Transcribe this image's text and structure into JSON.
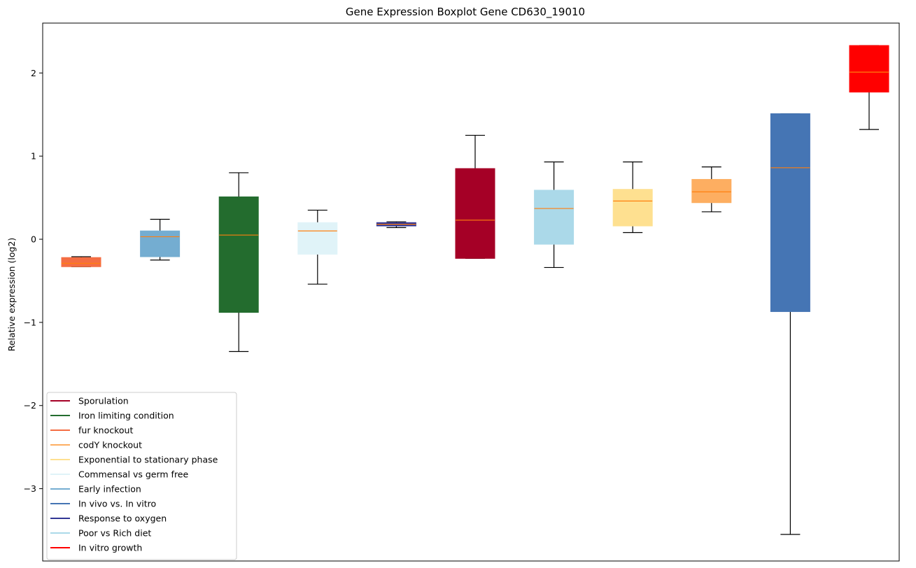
{
  "chart_data": {
    "type": "box",
    "title": "Gene Expression Boxplot Gene CD630_19010",
    "xlabel": "",
    "ylabel": "Relative expression (log2)",
    "ylim": [
      -3.87,
      2.6
    ],
    "yticks": [
      -3,
      -2,
      -1,
      0,
      1,
      2
    ],
    "ytick_labels": [
      "−3",
      "−2",
      "−1",
      "0",
      "1",
      "2"
    ],
    "median_color": "#ff7f0e",
    "legend_position": "lower-left",
    "boxes": [
      {
        "label": "fur knockout",
        "color": "#f46d43",
        "whisker_low": -0.33,
        "q1": -0.33,
        "median": -0.29,
        "q3": -0.22,
        "whisker_high": -0.21
      },
      {
        "label": "Early infection",
        "color": "#74add1",
        "whisker_low": -0.25,
        "q1": -0.21,
        "median": 0.03,
        "q3": 0.1,
        "whisker_high": 0.24
      },
      {
        "label": "Iron limiting condition",
        "color": "#236c2e",
        "whisker_low": -1.35,
        "q1": -0.88,
        "median": 0.05,
        "q3": 0.51,
        "whisker_high": 0.8
      },
      {
        "label": "Commensal vs germ free",
        "color": "#e0f3f8",
        "whisker_low": -0.54,
        "q1": -0.18,
        "median": 0.1,
        "q3": 0.2,
        "whisker_high": 0.35
      },
      {
        "label": "Response to oxygen",
        "color": "#313695",
        "whisker_low": 0.14,
        "q1": 0.16,
        "median": 0.18,
        "q3": 0.2,
        "whisker_high": 0.21
      },
      {
        "label": "Sporulation",
        "color": "#a50026",
        "whisker_low": -0.23,
        "q1": -0.23,
        "median": 0.23,
        "q3": 0.85,
        "whisker_high": 1.25
      },
      {
        "label": "Poor vs Rich diet",
        "color": "#abd9e9",
        "whisker_low": -0.34,
        "q1": -0.06,
        "median": 0.37,
        "q3": 0.59,
        "whisker_high": 0.93
      },
      {
        "label": "Exponential to stationary phase",
        "color": "#fee090",
        "whisker_low": 0.08,
        "q1": 0.16,
        "median": 0.46,
        "q3": 0.6,
        "whisker_high": 0.93
      },
      {
        "label": "codY knockout",
        "color": "#fdae61",
        "whisker_low": 0.33,
        "q1": 0.44,
        "median": 0.57,
        "q3": 0.72,
        "whisker_high": 0.87
      },
      {
        "label": "In vivo vs. In vitro",
        "color": "#4575b4",
        "whisker_low": -3.55,
        "q1": -0.87,
        "median": 0.86,
        "q3": 1.51,
        "whisker_high": 1.51
      },
      {
        "label": "In vitro growth",
        "color": "#ff0000",
        "whisker_low": 1.32,
        "q1": 1.77,
        "median": 2.01,
        "q3": 2.33,
        "whisker_high": 2.33
      }
    ],
    "legend": [
      {
        "label": "Sporulation",
        "color": "#a50026"
      },
      {
        "label": "Iron limiting condition",
        "color": "#236c2e"
      },
      {
        "label": "fur knockout",
        "color": "#f46d43"
      },
      {
        "label": "codY knockout",
        "color": "#fdae61"
      },
      {
        "label": "Exponential to stationary phase",
        "color": "#fee090"
      },
      {
        "label": "Commensal vs germ free",
        "color": "#e0f3f8"
      },
      {
        "label": "Early infection",
        "color": "#74add1"
      },
      {
        "label": "In vivo vs. In vitro",
        "color": "#4575b4"
      },
      {
        "label": "Response to oxygen",
        "color": "#313695"
      },
      {
        "label": "Poor vs Rich diet",
        "color": "#abd9e9"
      },
      {
        "label": "In vitro growth",
        "color": "#ff0000"
      }
    ]
  }
}
